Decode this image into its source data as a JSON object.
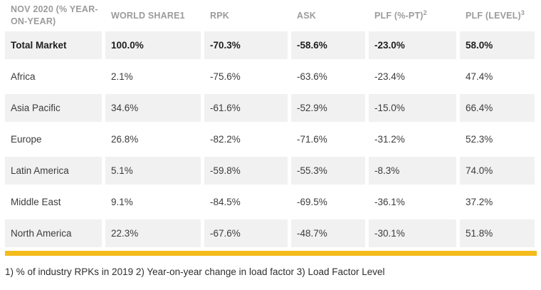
{
  "chart_data": {
    "type": "table",
    "title": "NOV 2020 (% YEAR-ON-YEAR)",
    "columns": [
      {
        "label": "NOV 2020 (% YEAR-ON-YEAR)",
        "sup": ""
      },
      {
        "label": "WORLD SHARE1",
        "sup": ""
      },
      {
        "label": "RPK",
        "sup": ""
      },
      {
        "label": "ASK",
        "sup": ""
      },
      {
        "label": "PLF (%-PT)",
        "sup": "2"
      },
      {
        "label": "PLF (LEVEL)",
        "sup": "3"
      }
    ],
    "rows": [
      {
        "region": "Total Market",
        "world_share": "100.0%",
        "rpk": "-70.3%",
        "ask": "-58.6%",
        "plf_pt": "-23.0%",
        "plf_level": "58.0%",
        "emphasis": true
      },
      {
        "region": "Africa",
        "world_share": "2.1%",
        "rpk": "-75.6%",
        "ask": "-63.6%",
        "plf_pt": "-23.4%",
        "plf_level": "47.4%",
        "emphasis": false
      },
      {
        "region": "Asia Pacific",
        "world_share": "34.6%",
        "rpk": "-61.6%",
        "ask": "-52.9%",
        "plf_pt": "-15.0%",
        "plf_level": "66.4%",
        "emphasis": false
      },
      {
        "region": "Europe",
        "world_share": "26.8%",
        "rpk": "-82.2%",
        "ask": "-71.6%",
        "plf_pt": "-31.2%",
        "plf_level": "52.3%",
        "emphasis": false
      },
      {
        "region": "Latin America",
        "world_share": "5.1%",
        "rpk": "-59.8%",
        "ask": "-55.3%",
        "plf_pt": "-8.3%",
        "plf_level": "74.0%",
        "emphasis": false
      },
      {
        "region": "Middle East",
        "world_share": "9.1%",
        "rpk": "-84.5%",
        "ask": "-69.5%",
        "plf_pt": "-36.1%",
        "plf_level": "37.2%",
        "emphasis": false
      },
      {
        "region": "North America",
        "world_share": "22.3%",
        "rpk": "-67.6%",
        "ask": "-48.7%",
        "plf_pt": "-30.1%",
        "plf_level": "51.8%",
        "emphasis": false
      }
    ]
  },
  "footnote": "1) % of industry RPKs in 2019  2) Year-on-year change in load factor 3) Load Factor Level",
  "colors": {
    "accent_bar": "#f3bb1c",
    "cell_background": "#f1f1f1",
    "header_text": "#9b9b9b",
    "body_text": "#3c3c3c"
  }
}
